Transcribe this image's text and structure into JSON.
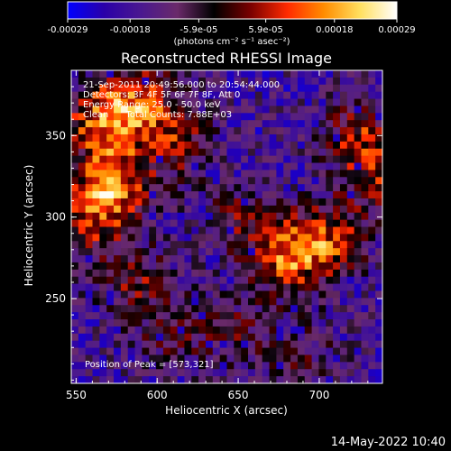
{
  "chart_data": {
    "type": "heatmap",
    "title": "Reconstructed RHESSI Image",
    "xlabel": "Heliocentric X (arcsec)",
    "ylabel": "Heliocentric Y (arcsec)",
    "xlim": [
      547,
      739
    ],
    "ylim": [
      198,
      390
    ],
    "x_ticks": [
      550,
      600,
      650,
      700
    ],
    "y_ticks": [
      250,
      300,
      350
    ],
    "colorbar": {
      "range": [
        -0.00029,
        0.00029
      ],
      "tick_labels": [
        "-0.00029",
        "-0.00018",
        "-5.9e-05",
        "5.9e-05",
        "0.00018",
        "0.00029"
      ],
      "tick_values": [
        -0.00029,
        -0.00018,
        -5.9e-05,
        5.9e-05,
        0.00018,
        0.00029
      ],
      "unit_label": "(photons cm⁻² s⁻¹ asec⁻²)",
      "colormap": [
        "#0000ff",
        "#2a00a8",
        "#4a1890",
        "#6a2a6a",
        "#000000",
        "#7a0000",
        "#ff2a00",
        "#ff8c00",
        "#ffe060",
        "#ffffff"
      ]
    },
    "annotations": [
      "21-Sep-2011 20:49:56.000 to 20:54:44.000",
      "Detectors: 3F 4F 5F 6F 7F 8F, Att 0",
      "Energy Range: 25.0 - 50.0 keV",
      "Clean      Total Counts: 7.88E+03"
    ],
    "peak": {
      "label": "Position of Peak = [573,321]",
      "x": 573,
      "y": 321
    },
    "hotspots": [
      {
        "x": 573,
        "y": 321,
        "intensity": 1.0
      },
      {
        "x": 565,
        "y": 360,
        "intensity": 0.95
      },
      {
        "x": 590,
        "y": 370,
        "intensity": 0.85
      },
      {
        "x": 560,
        "y": 300,
        "intensity": 0.7
      },
      {
        "x": 612,
        "y": 345,
        "intensity": 0.6
      },
      {
        "x": 680,
        "y": 276,
        "intensity": 0.95
      },
      {
        "x": 705,
        "y": 285,
        "intensity": 0.8
      },
      {
        "x": 725,
        "y": 350,
        "intensity": 0.7
      },
      {
        "x": 735,
        "y": 320,
        "intensity": 0.55
      },
      {
        "x": 585,
        "y": 262,
        "intensity": 0.55
      },
      {
        "x": 610,
        "y": 230,
        "intensity": 0.45
      },
      {
        "x": 650,
        "y": 230,
        "intensity": 0.4
      },
      {
        "x": 690,
        "y": 215,
        "intensity": 0.4
      },
      {
        "x": 650,
        "y": 300,
        "intensity": 0.45
      }
    ]
  },
  "footer": {
    "timestamp": "14-May-2022 10:40"
  }
}
